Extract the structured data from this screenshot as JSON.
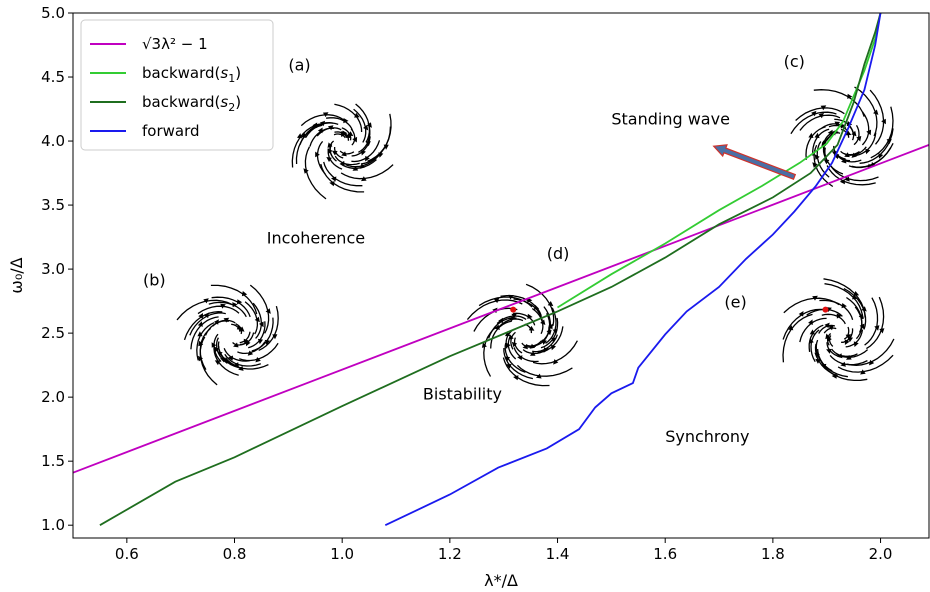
{
  "chart_data": {
    "type": "line",
    "title": "",
    "xlabel": "λ*/Δ",
    "ylabel": "ω₀/Δ",
    "xlim": [
      0.5,
      2.09
    ],
    "ylim": [
      0.9,
      5.0
    ],
    "xticks": [
      0.6,
      0.8,
      1.0,
      1.2,
      1.4,
      1.6,
      1.8,
      2.0
    ],
    "xtick_labels": [
      "0.6",
      "0.8",
      "1.0",
      "1.2",
      "1.4",
      "1.6",
      "1.8",
      "2.0"
    ],
    "yticks": [
      1.0,
      1.5,
      2.0,
      2.5,
      3.0,
      3.5,
      4.0,
      4.5,
      5.0
    ],
    "ytick_labels": [
      "1.0",
      "1.5",
      "2.0",
      "2.5",
      "3.0",
      "3.5",
      "4.0",
      "4.5",
      "5.0"
    ],
    "grid": false,
    "legend_position": "top-left",
    "series": [
      {
        "name": "√(3λ²−1)",
        "legend_main": "√3λ² − 1",
        "color": "#c000c0",
        "x": [
          0.5,
          2.09
        ],
        "y": [
          1.41,
          3.97
        ]
      },
      {
        "name": "backward(s₁)",
        "legend_main": "backward(",
        "legend_sym": "s",
        "legend_sub": "1",
        "legend_close": ")",
        "color": "#33cc33",
        "x": [
          1.4,
          1.5,
          1.6,
          1.7,
          1.78,
          1.85,
          1.9,
          1.93,
          1.95,
          1.97,
          1.99,
          2.0
        ],
        "y": [
          2.7,
          2.96,
          3.2,
          3.46,
          3.65,
          3.83,
          3.98,
          4.15,
          4.35,
          4.55,
          4.8,
          5.0
        ]
      },
      {
        "name": "backward(s₂)",
        "legend_main": "backward(",
        "legend_sym": "s",
        "legend_sub": "2",
        "legend_close": ")",
        "color": "#1f6e1f",
        "x": [
          0.55,
          0.69,
          0.8,
          1.0,
          1.2,
          1.4,
          1.5,
          1.6,
          1.7,
          1.8,
          1.87,
          1.92,
          1.95,
          1.97,
          1.99,
          2.0
        ],
        "y": [
          1.0,
          1.34,
          1.53,
          1.93,
          2.32,
          2.67,
          2.86,
          3.09,
          3.35,
          3.56,
          3.75,
          3.97,
          4.3,
          4.6,
          4.85,
          5.0
        ]
      },
      {
        "name": "forward",
        "legend_main": "forward",
        "color": "#1a1aee",
        "x": [
          1.08,
          1.2,
          1.29,
          1.38,
          1.44,
          1.47,
          1.5,
          1.54,
          1.55,
          1.6,
          1.64,
          1.7,
          1.75,
          1.8,
          1.84,
          1.88,
          1.91,
          1.94,
          1.97,
          1.99,
          2.0
        ],
        "y": [
          1.0,
          1.24,
          1.45,
          1.6,
          1.75,
          1.92,
          2.03,
          2.11,
          2.23,
          2.49,
          2.67,
          2.86,
          3.08,
          3.27,
          3.45,
          3.65,
          3.83,
          4.1,
          4.4,
          4.75,
          5.0
        ]
      }
    ],
    "annotations": [
      {
        "text": "Incoherence",
        "x": 0.86,
        "y": 3.2
      },
      {
        "text": "Bistability",
        "x": 1.15,
        "y": 1.98
      },
      {
        "text": "Synchrony",
        "x": 1.6,
        "y": 1.65
      },
      {
        "text": "Standing wave",
        "x": 1.5,
        "y": 4.13
      }
    ],
    "arrow": {
      "from": [
        1.84,
        3.72
      ],
      "to": [
        1.69,
        3.96
      ]
    },
    "insets": [
      {
        "label": "(a)",
        "cx": 1.0,
        "cy": 3.98,
        "label_x": 0.9,
        "label_y": 4.55,
        "red_point": false
      },
      {
        "label": "(b)",
        "cx": 0.8,
        "cy": 2.48,
        "label_x": 0.63,
        "label_y": 2.87,
        "red_point": false
      },
      {
        "label": "(c)",
        "cx": 1.93,
        "cy": 4.0,
        "label_x": 1.82,
        "label_y": 4.58,
        "red_point": false
      },
      {
        "label": "(d)",
        "cx": 1.34,
        "cy": 2.48,
        "label_x": 1.38,
        "label_y": 3.08,
        "red_point": true
      },
      {
        "label": "(e)",
        "cx": 1.92,
        "cy": 2.48,
        "label_x": 1.71,
        "label_y": 2.7,
        "red_point": true
      }
    ]
  }
}
